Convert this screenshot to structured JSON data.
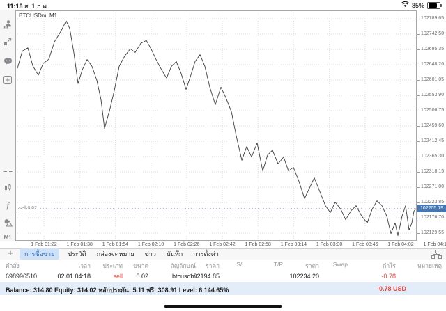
{
  "status_bar": {
    "time": "11:18",
    "date": "ส. 1 ก.พ.",
    "battery_percent": "85%"
  },
  "sidebar": {
    "icons": [
      "account-icon",
      "trade-icon",
      "chat-icon",
      "new-chart-icon",
      "crosshair-icon",
      "chart-type-icon",
      "indicators-icon",
      "objects-icon"
    ],
    "timeframe_label": "M1"
  },
  "chart": {
    "symbol_label": "BTCUSDm, M1",
    "position_label": "sell 0.02",
    "current_price_badge": "102205.19"
  },
  "chart_data": {
    "type": "line",
    "title": "BTCUSDm, M1",
    "y_axis": {
      "top": 102789.65,
      "step": 47.15,
      "labels": [
        "102789.65",
        "102742.50",
        "102695.35",
        "102648.20",
        "102601.05",
        "102553.90",
        "102506.75",
        "102459.60",
        "102412.45",
        "102365.30",
        "102318.15",
        "102271.00",
        "102223.85",
        "102176.70",
        "102129.55"
      ]
    },
    "x_axis": {
      "labels": [
        "1 Feb 01:22",
        "1 Feb 01:38",
        "1 Feb 01:54",
        "1 Feb 02:10",
        "1 Feb 02:26",
        "1 Feb 02:42",
        "1 Feb 02:58",
        "1 Feb 03:14",
        "1 Feb 03:30",
        "1 Feb 03:46",
        "1 Feb 04:02",
        "1 Feb 04:18"
      ]
    },
    "sell_line_price": 102194.85,
    "current_price": 102205.19,
    "points": [
      [
        25,
        102637
      ],
      [
        32,
        102690
      ],
      [
        40,
        102700
      ],
      [
        47,
        102645
      ],
      [
        55,
        102616
      ],
      [
        62,
        102652
      ],
      [
        70,
        102665
      ],
      [
        78,
        102718
      ],
      [
        87,
        102750
      ],
      [
        95,
        102783
      ],
      [
        100,
        102760
      ],
      [
        106,
        102685
      ],
      [
        112,
        102590
      ],
      [
        118,
        102632
      ],
      [
        125,
        102664
      ],
      [
        132,
        102643
      ],
      [
        139,
        102600
      ],
      [
        145,
        102540
      ],
      [
        150,
        102452
      ],
      [
        157,
        102505
      ],
      [
        164,
        102568
      ],
      [
        171,
        102643
      ],
      [
        179,
        102675
      ],
      [
        187,
        102697
      ],
      [
        194,
        102686
      ],
      [
        202,
        102714
      ],
      [
        210,
        102723
      ],
      [
        217,
        102696
      ],
      [
        224,
        102664
      ],
      [
        232,
        102632
      ],
      [
        239,
        102607
      ],
      [
        246,
        102643
      ],
      [
        253,
        102658
      ],
      [
        260,
        102621
      ],
      [
        267,
        102572
      ],
      [
        273,
        102610
      ],
      [
        280,
        102658
      ],
      [
        287,
        102679
      ],
      [
        294,
        102643
      ],
      [
        301,
        102579
      ],
      [
        309,
        102525
      ],
      [
        317,
        102579
      ],
      [
        324,
        102547
      ],
      [
        332,
        102504
      ],
      [
        339,
        102429
      ],
      [
        347,
        102354
      ],
      [
        354,
        102396
      ],
      [
        361,
        102364
      ],
      [
        369,
        102407
      ],
      [
        377,
        102321
      ],
      [
        384,
        102370
      ],
      [
        391,
        102385
      ],
      [
        399,
        102343
      ],
      [
        407,
        102364
      ],
      [
        414,
        102321
      ],
      [
        421,
        102332
      ],
      [
        429,
        102289
      ],
      [
        437,
        102236
      ],
      [
        444,
        102268
      ],
      [
        451,
        102300
      ],
      [
        459,
        102257
      ],
      [
        467,
        102214
      ],
      [
        474,
        102193
      ],
      [
        481,
        102225
      ],
      [
        489,
        102203
      ],
      [
        496,
        102171
      ],
      [
        504,
        102199
      ],
      [
        511,
        102214
      ],
      [
        519,
        102182
      ],
      [
        527,
        102161
      ],
      [
        534,
        102203
      ],
      [
        541,
        102229
      ],
      [
        548,
        102214
      ],
      [
        555,
        102182
      ],
      [
        561,
        102128
      ],
      [
        567,
        102161
      ],
      [
        571,
        102122
      ],
      [
        577,
        102182
      ],
      [
        582,
        102214
      ],
      [
        587,
        102139
      ],
      [
        591,
        102161
      ],
      [
        594,
        102197
      ],
      [
        597,
        102205
      ]
    ]
  },
  "bottom_panel": {
    "new_order_button": "+",
    "tabs": [
      {
        "label": "การซื้อขาย",
        "active": true
      },
      {
        "label": "ประวัติ",
        "active": false
      },
      {
        "label": "กล่องจดหมาย",
        "active": false
      },
      {
        "label": "ข่าว",
        "active": false
      },
      {
        "label": "บันทึก",
        "active": false
      },
      {
        "label": "การตั้งค่า",
        "active": false
      }
    ],
    "table": {
      "headers": [
        "คำสั่ง",
        "เวลา",
        "ประเภท",
        "ขนาด",
        "สัญลักษณ์",
        "ราคา",
        "S/L",
        "T/P",
        "ราคา",
        "Swap",
        "กำไร",
        "หมายเหตุ"
      ],
      "row": [
        "698996510",
        "02.01 04:18",
        "sell",
        "0.02",
        "btcusdm",
        "102194.85",
        "",
        "",
        "102234.20",
        "",
        "-0.78",
        ""
      ]
    },
    "balance_bar": {
      "summary": "Balance: 314.80 Equity: 314.02 หลักประกัน: 5.11 ฟรี: 308.91 Level: 6 144.65%",
      "floating_pl": "-0.78  USD"
    }
  },
  "colors": {
    "badge_bg": "#4477b3",
    "sell_red": "#e0483e",
    "active_tab_bg": "#cfe1f6",
    "active_tab_text": "#2e6db4",
    "chart_line": "#3c3c3c"
  }
}
